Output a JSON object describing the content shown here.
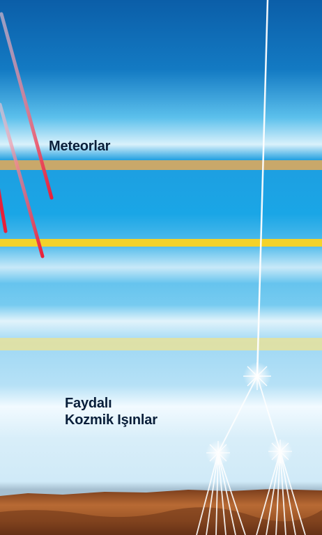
{
  "labels": {
    "meteors": "Meteorlar",
    "cosmic_rays_line1": "Faydalı",
    "cosmic_rays_line2": "Kozmik Işınlar"
  },
  "colors": {
    "sky_top": "#0b5ea8",
    "sky_bright": "#1aa6e6",
    "sky_pale": "#d8eef9",
    "band_tan": "#c9a86a",
    "band_yellow": "#f4d22a",
    "band_pale_yellow": "#e7e29a",
    "meteor_red": "#e8203a",
    "ground": "#8a4a22"
  }
}
